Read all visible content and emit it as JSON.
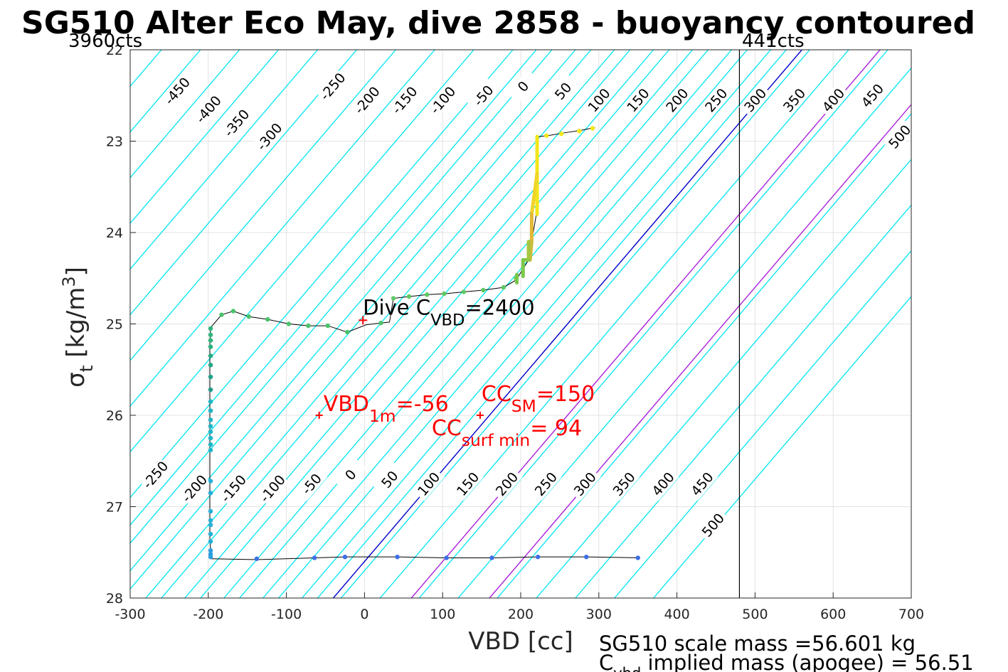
{
  "chart_data": {
    "type": "line",
    "title": "SG510 Alter Eco May, dive 2858 - buoyancy contoured",
    "xlabel": "VBD [cc]",
    "ylabel": "σ_t [kg/m^3]",
    "xlim": [
      -300,
      700
    ],
    "ylim": [
      22,
      28
    ],
    "y_reversed": true,
    "grid": true,
    "xticks": [
      "-300",
      "-200",
      "-100",
      "0",
      "100",
      "200",
      "300",
      "400",
      "500",
      "600",
      "700"
    ],
    "yticks": [
      "22",
      "23",
      "24",
      "25",
      "26",
      "27",
      "28"
    ],
    "cts_left": "3960cts",
    "cts_right": "441cts",
    "cts_right_vbd": 480,
    "buoyancy_slope_cc_per_sigma": -100,
    "contours_top": {
      "line_values": [
        -450,
        -400,
        -350,
        -300,
        -250,
        -200,
        -150,
        -100,
        -50,
        0,
        50,
        100,
        150,
        200,
        250,
        300,
        350,
        400,
        450,
        500
      ],
      "labels": [
        {
          "text": "-450",
          "at": [
            -240,
            22.45
          ]
        },
        {
          "text": "-400",
          "at": [
            -200,
            22.65
          ]
        },
        {
          "text": "-350",
          "at": [
            -164,
            22.8
          ]
        },
        {
          "text": "-300",
          "at": [
            -122,
            22.95
          ]
        },
        {
          "text": "-250",
          "at": [
            -41,
            22.4
          ]
        },
        {
          "text": "-200",
          "at": [
            3,
            22.55
          ]
        },
        {
          "text": "-150",
          "at": [
            51,
            22.55
          ]
        },
        {
          "text": "-100",
          "at": [
            100,
            22.55
          ]
        },
        {
          "text": "-50",
          "at": [
            152,
            22.5
          ]
        },
        {
          "text": "0",
          "at": [
            203,
            22.4
          ]
        },
        {
          "text": "50",
          "at": [
            254,
            22.45
          ]
        },
        {
          "text": "100",
          "at": [
            300,
            22.55
          ]
        },
        {
          "text": "150",
          "at": [
            350,
            22.55
          ]
        },
        {
          "text": "200",
          "at": [
            400,
            22.55
          ]
        },
        {
          "text": "250",
          "at": [
            450,
            22.55
          ]
        },
        {
          "text": "300",
          "at": [
            500,
            22.55
          ]
        },
        {
          "text": "350",
          "at": [
            550,
            22.55
          ]
        },
        {
          "text": "400",
          "at": [
            600,
            22.55
          ]
        },
        {
          "text": "450",
          "at": [
            650,
            22.5
          ]
        },
        {
          "text": "500",
          "at": [
            685,
            22.95
          ]
        }
      ]
    },
    "contours_bottom": {
      "line_values": [
        -250,
        -200,
        -150,
        -100,
        -50,
        0,
        50,
        100,
        150,
        200,
        250,
        300,
        350,
        400,
        450,
        500
      ],
      "labels": [
        {
          "text": "-250",
          "at": [
            -268,
            26.65
          ]
        },
        {
          "text": "-200",
          "at": [
            -218,
            26.8
          ]
        },
        {
          "text": "-150",
          "at": [
            -168,
            26.8
          ]
        },
        {
          "text": "-100",
          "at": [
            -118,
            26.8
          ]
        },
        {
          "text": "-50",
          "at": [
            -68,
            26.75
          ]
        },
        {
          "text": "0",
          "at": [
            -18,
            26.65
          ]
        },
        {
          "text": "50",
          "at": [
            32,
            26.7
          ]
        },
        {
          "text": "100",
          "at": [
            82,
            26.75
          ]
        },
        {
          "text": "150",
          "at": [
            132,
            26.75
          ]
        },
        {
          "text": "200",
          "at": [
            182,
            26.75
          ]
        },
        {
          "text": "250",
          "at": [
            232,
            26.75
          ]
        },
        {
          "text": "300",
          "at": [
            282,
            26.75
          ]
        },
        {
          "text": "350",
          "at": [
            332,
            26.75
          ]
        },
        {
          "text": "400",
          "at": [
            382,
            26.75
          ]
        },
        {
          "text": "450",
          "at": [
            432,
            26.75
          ]
        },
        {
          "text": "500",
          "at": [
            446,
            27.2
          ]
        }
      ]
    },
    "reference_lines": [
      {
        "value": 0,
        "color": "#0000cc"
      },
      {
        "value": 100,
        "color": "#aa22dd"
      },
      {
        "value": 200,
        "color": "#aa22dd"
      }
    ],
    "series": [
      {
        "color": "#000000",
        "x": [
          295,
          278,
          255,
          235,
          222,
          221,
          220,
          214,
          210,
          197,
          194,
          178,
          152,
          127,
          102,
          80,
          57,
          37,
          32,
          21,
          2,
          -22,
          -47,
          -72,
          -97,
          -124,
          -148,
          -168,
          -183,
          -197,
          -198,
          -198,
          -198,
          -198,
          -198,
          -198,
          -198,
          -198,
          -198,
          -197,
          -197,
          -197,
          -197,
          -197,
          -197,
          -196,
          -138,
          -64,
          -25,
          42,
          105,
          163,
          222,
          284,
          353
        ],
        "y": [
          22.85,
          22.88,
          22.91,
          22.94,
          22.95,
          23.3,
          23.8,
          24.1,
          24.3,
          24.48,
          24.52,
          24.6,
          24.63,
          24.65,
          24.67,
          24.68,
          24.7,
          24.72,
          24.98,
          24.99,
          25.01,
          25.09,
          25.02,
          25.02,
          25.0,
          24.95,
          24.92,
          24.86,
          24.9,
          25.04,
          25.2,
          25.5,
          25.8,
          26.1,
          26.4,
          26.7,
          27.0,
          27.2,
          27.35,
          27.48,
          27.52,
          27.54,
          27.55,
          27.56,
          27.57,
          27.57,
          27.58,
          27.56,
          27.55,
          27.55,
          27.56,
          27.56,
          27.55,
          27.55,
          27.56
        ]
      }
    ],
    "colored_points": [
      {
        "x": 292,
        "y": 22.86,
        "color": "#f3e61b"
      },
      {
        "x": 275,
        "y": 22.89,
        "color": "#f3e61b"
      },
      {
        "x": 252,
        "y": 22.92,
        "color": "#f3e61b"
      },
      {
        "x": 233,
        "y": 22.94,
        "color": "#f3e61b"
      },
      {
        "x": 194,
        "y": 24.5,
        "color": "#7cc84a"
      },
      {
        "x": 178,
        "y": 24.6,
        "color": "#5ec962"
      },
      {
        "x": 152,
        "y": 24.63,
        "color": "#5ec962"
      },
      {
        "x": 127,
        "y": 24.65,
        "color": "#5ec962"
      },
      {
        "x": 102,
        "y": 24.67,
        "color": "#5ec962"
      },
      {
        "x": 80,
        "y": 24.68,
        "color": "#5ec962"
      },
      {
        "x": 57,
        "y": 24.7,
        "color": "#5ec962"
      },
      {
        "x": 37,
        "y": 24.72,
        "color": "#5ec962"
      },
      {
        "x": 21,
        "y": 24.99,
        "color": "#4cc26c"
      },
      {
        "x": -22,
        "y": 25.09,
        "color": "#4cc26c"
      },
      {
        "x": -47,
        "y": 25.02,
        "color": "#4cc26c"
      },
      {
        "x": -72,
        "y": 25.02,
        "color": "#4cc26c"
      },
      {
        "x": -97,
        "y": 25.0,
        "color": "#4cc26c"
      },
      {
        "x": -124,
        "y": 24.95,
        "color": "#4cc26c"
      },
      {
        "x": -148,
        "y": 24.92,
        "color": "#4cc26c"
      },
      {
        "x": -168,
        "y": 24.86,
        "color": "#4cc26c"
      },
      {
        "x": -183,
        "y": 24.9,
        "color": "#4cc26c"
      },
      {
        "x": -197,
        "y": 25.05,
        "color": "#2fb47c"
      },
      {
        "x": -197,
        "y": 25.12,
        "color": "#2fb47c"
      },
      {
        "x": -197,
        "y": 25.18,
        "color": "#2fb47c"
      },
      {
        "x": -197,
        "y": 25.25,
        "color": "#2ab27f"
      },
      {
        "x": -197,
        "y": 25.35,
        "color": "#25ac82"
      },
      {
        "x": -197,
        "y": 25.45,
        "color": "#22a785"
      },
      {
        "x": -197,
        "y": 25.58,
        "color": "#1fa187"
      },
      {
        "x": -197,
        "y": 25.72,
        "color": "#1e9b8a"
      },
      {
        "x": -197,
        "y": 25.85,
        "color": "#1fb5c5"
      },
      {
        "x": -197,
        "y": 25.95,
        "color": "#1fb5c5"
      },
      {
        "x": -197,
        "y": 26.05,
        "color": "#1fb5c5"
      },
      {
        "x": -197,
        "y": 26.12,
        "color": "#1fb5c5"
      },
      {
        "x": -197,
        "y": 26.18,
        "color": "#1fb5c5"
      },
      {
        "x": -197,
        "y": 26.25,
        "color": "#1fb5c5"
      },
      {
        "x": -197,
        "y": 26.32,
        "color": "#1fb5c5"
      },
      {
        "x": -197,
        "y": 26.38,
        "color": "#1fb5c5"
      },
      {
        "x": -197,
        "y": 26.72,
        "color": "#25b0d8"
      },
      {
        "x": -197,
        "y": 26.85,
        "color": "#25b0d8"
      },
      {
        "x": -197,
        "y": 27.05,
        "color": "#25b0d8"
      },
      {
        "x": -197,
        "y": 27.15,
        "color": "#25b0d8"
      },
      {
        "x": -197,
        "y": 27.2,
        "color": "#25b0d8"
      },
      {
        "x": -197,
        "y": 27.3,
        "color": "#25b0d8"
      },
      {
        "x": -197,
        "y": 27.38,
        "color": "#25b0d8"
      },
      {
        "x": -197,
        "y": 27.48,
        "color": "#2a9ee0"
      },
      {
        "x": -197,
        "y": 27.52,
        "color": "#2a9ee0"
      },
      {
        "x": -197,
        "y": 27.55,
        "color": "#2a9ee0"
      },
      {
        "x": -138,
        "y": 27.57,
        "color": "#3d6fe6"
      },
      {
        "x": -64,
        "y": 27.56,
        "color": "#3d6fe6"
      },
      {
        "x": -25,
        "y": 27.55,
        "color": "#3d6fe6"
      },
      {
        "x": 42,
        "y": 27.55,
        "color": "#3d6fe6"
      },
      {
        "x": 105,
        "y": 27.56,
        "color": "#3d6fe6"
      },
      {
        "x": 163,
        "y": 27.56,
        "color": "#3d6fe6"
      },
      {
        "x": 222,
        "y": 27.55,
        "color": "#3d6fe6"
      },
      {
        "x": 284,
        "y": 27.55,
        "color": "#3d6fe6"
      },
      {
        "x": 350,
        "y": 27.56,
        "color": "#3d6fe6"
      }
    ],
    "thick_segments": [
      {
        "x": [
          221,
          221
        ],
        "y": [
          22.95,
          23.8
        ],
        "color": "#f3e61b"
      },
      {
        "x": [
          221,
          214
        ],
        "y": [
          23.35,
          23.8
        ],
        "color": "#f0d52a"
      },
      {
        "x": [
          214,
          214
        ],
        "y": [
          23.8,
          24.1
        ],
        "color": "#e3b838"
      },
      {
        "x": [
          214,
          212
        ],
        "y": [
          24.1,
          24.3
        ],
        "color": "#c9bd3c"
      },
      {
        "x": [
          210,
          210
        ],
        "y": [
          24.1,
          24.3
        ],
        "color": "#a8c540"
      },
      {
        "x": [
          210,
          203
        ],
        "y": [
          24.3,
          24.3
        ],
        "color": "#8fc846"
      },
      {
        "x": [
          203,
          203
        ],
        "y": [
          24.3,
          24.48
        ],
        "color": "#7cc84a"
      },
      {
        "x": [
          195,
          195
        ],
        "y": [
          24.46,
          24.55
        ],
        "color": "#7cc84a"
      }
    ],
    "dive_marker": {
      "x": -2,
      "y": 24.96,
      "label": "Dive C",
      "sub": "VBD",
      "value": "=2400"
    },
    "vbd1m": {
      "marker_x": -58,
      "marker_y": 26.0,
      "label": "VBD",
      "sub": "1m",
      "value": "=-56"
    },
    "ccsm": {
      "marker_x": 148,
      "marker_y": 26.0,
      "label": "CC",
      "sub": "SM",
      "value": "=150"
    },
    "ccsurf": {
      "label": "CC",
      "sub": "surf min",
      "value": "= 94"
    },
    "footer": {
      "line1": "SG510 scale mass =56.601 kg",
      "line2_prefix": "C",
      "line2_sub": "vbd",
      "line2_rest": " implied mass (apogee) = 56.51"
    },
    "colors": {
      "contour": "#00e5f0",
      "grid": "#e3e3e3",
      "annotation": "#ff0000",
      "zero_line": "#0000cc",
      "ref_line": "#aa22dd"
    }
  }
}
